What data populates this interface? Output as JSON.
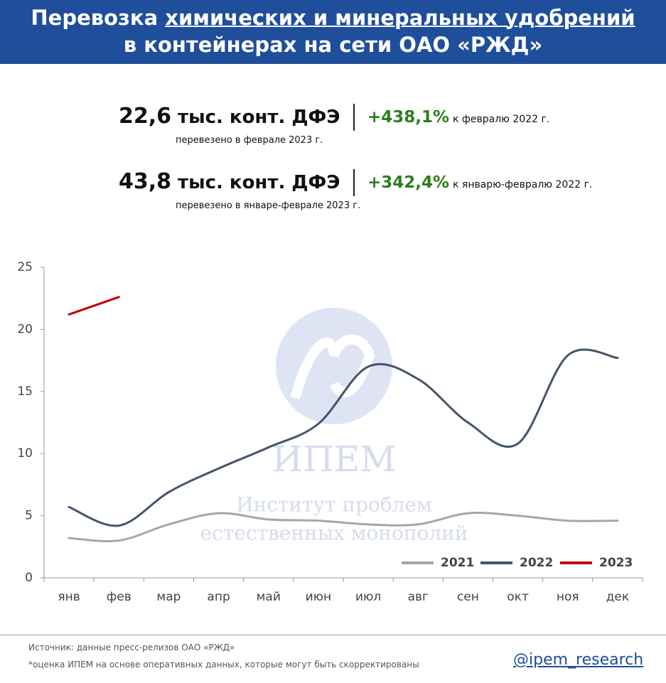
{
  "header": {
    "title_parts": [
      "Перевозка",
      "химических и минеральных удобрений",
      "в контейнерах на сети ОАО «РЖД»"
    ]
  },
  "stats": [
    {
      "value": "22,6",
      "unit": "тыс. конт. ДФЭ",
      "change": "+438,1%",
      "comparison": "к февралю 2022 г.",
      "note": "перевезено в феврале 2023 г."
    },
    {
      "value": "43,8",
      "unit": "тыс. конт. ДФЭ",
      "change": "+342,4%",
      "comparison": "к январю-февралю 2022 г.",
      "note": "перевезено в январе-феврале 2023 г."
    }
  ],
  "chart_data": {
    "type": "line",
    "categories": [
      "янв",
      "фев",
      "мар",
      "апр",
      "май",
      "июн",
      "июл",
      "авг",
      "сен",
      "окт",
      "ноя",
      "дек"
    ],
    "series": [
      {
        "name": "2021",
        "color": "#a6a6a6",
        "values": [
          3.2,
          3.0,
          4.3,
          5.2,
          4.7,
          4.6,
          4.3,
          4.3,
          5.2,
          5.0,
          4.6,
          4.6
        ]
      },
      {
        "name": "2022",
        "color": "#44546a",
        "values": [
          5.7,
          4.2,
          6.9,
          8.8,
          10.5,
          12.4,
          17.0,
          16.0,
          12.5,
          10.8,
          17.9,
          17.7
        ]
      },
      {
        "name": "2023",
        "color": "#c00000",
        "values": [
          21.2,
          22.6,
          null,
          null,
          null,
          null,
          null,
          null,
          null,
          null,
          null,
          null
        ]
      }
    ],
    "ylim": [
      0,
      25
    ],
    "yticks": [
      0,
      5,
      10,
      15,
      20,
      25
    ],
    "legend": "lower right"
  },
  "watermark": {
    "name": "ИПЕМ",
    "line1": "Институт проблем",
    "line2": "естественных монополий"
  },
  "footer": {
    "source": "Источник: данные пресс-релизов ОАО «РЖД»",
    "note": "*оценка ИПЕМ на основе оперативных данных, которые могут быть скорректированы",
    "handle": "@ipem_research"
  }
}
